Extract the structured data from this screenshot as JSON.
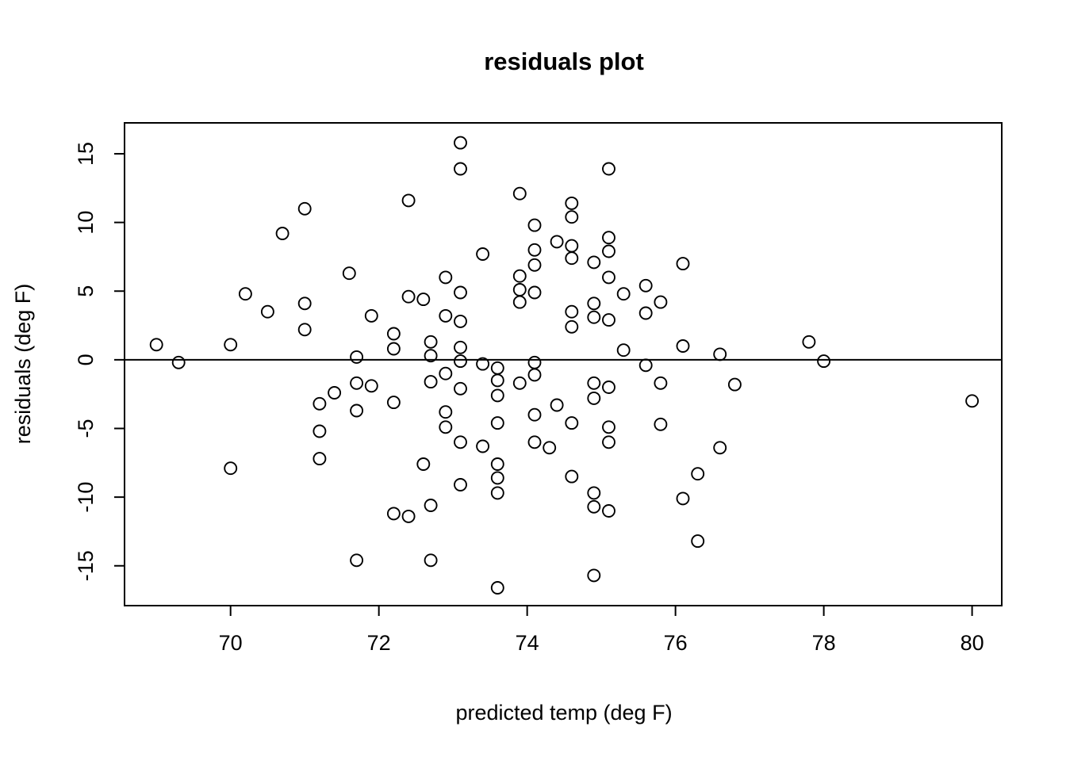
{
  "figure": {
    "background": "#ffffff",
    "foreground": "#000000"
  },
  "chart_data": {
    "type": "scatter",
    "title": "residuals plot",
    "xlabel": "predicted temp (deg F)",
    "ylabel": "residuals (deg F)",
    "marker": "open-circle",
    "grid": false,
    "legend": false,
    "zero_line_y": 0,
    "x_ticks": [
      70,
      72,
      74,
      76,
      78,
      80
    ],
    "y_ticks": [
      -15,
      -10,
      -5,
      0,
      5,
      10,
      15
    ],
    "xlim": [
      68.57,
      80.4
    ],
    "ylim": [
      -17.9,
      17.25
    ],
    "points": [
      [
        69.0,
        1.1
      ],
      [
        69.3,
        -0.2
      ],
      [
        70.0,
        1.1
      ],
      [
        70.0,
        -7.9
      ],
      [
        70.2,
        4.8
      ],
      [
        70.5,
        3.5
      ],
      [
        70.7,
        9.2
      ],
      [
        71.0,
        11.0
      ],
      [
        71.0,
        4.1
      ],
      [
        71.0,
        2.2
      ],
      [
        71.2,
        -3.2
      ],
      [
        71.2,
        -5.2
      ],
      [
        71.2,
        -7.2
      ],
      [
        71.4,
        -2.4
      ],
      [
        71.6,
        6.3
      ],
      [
        71.7,
        0.2
      ],
      [
        71.7,
        -1.7
      ],
      [
        71.7,
        -3.7
      ],
      [
        71.7,
        -14.6
      ],
      [
        71.9,
        3.2
      ],
      [
        71.9,
        -1.9
      ],
      [
        72.2,
        1.9
      ],
      [
        72.2,
        0.8
      ],
      [
        72.2,
        -3.1
      ],
      [
        72.2,
        -11.2
      ],
      [
        72.4,
        11.6
      ],
      [
        72.4,
        4.6
      ],
      [
        72.4,
        -11.4
      ],
      [
        72.6,
        4.4
      ],
      [
        72.6,
        -7.6
      ],
      [
        72.7,
        1.3
      ],
      [
        72.7,
        0.3
      ],
      [
        72.7,
        -1.6
      ],
      [
        72.7,
        -10.6
      ],
      [
        72.7,
        -14.6
      ],
      [
        72.9,
        6.0
      ],
      [
        72.9,
        3.2
      ],
      [
        72.9,
        -1.0
      ],
      [
        72.9,
        -3.8
      ],
      [
        72.9,
        -4.9
      ],
      [
        73.1,
        15.8
      ],
      [
        73.1,
        13.9
      ],
      [
        73.1,
        4.9
      ],
      [
        73.1,
        2.8
      ],
      [
        73.1,
        0.9
      ],
      [
        73.1,
        -0.1
      ],
      [
        73.1,
        -2.1
      ],
      [
        73.1,
        -6.0
      ],
      [
        73.1,
        -9.1
      ],
      [
        73.4,
        7.7
      ],
      [
        73.4,
        -0.3
      ],
      [
        73.4,
        -6.3
      ],
      [
        73.6,
        -0.6
      ],
      [
        73.6,
        -1.5
      ],
      [
        73.6,
        -2.6
      ],
      [
        73.6,
        -4.6
      ],
      [
        73.6,
        -7.6
      ],
      [
        73.6,
        -8.6
      ],
      [
        73.6,
        -9.7
      ],
      [
        73.6,
        -16.6
      ],
      [
        73.9,
        12.1
      ],
      [
        73.9,
        6.1
      ],
      [
        73.9,
        5.1
      ],
      [
        73.9,
        4.2
      ],
      [
        73.9,
        -1.7
      ],
      [
        74.1,
        9.8
      ],
      [
        74.1,
        8.0
      ],
      [
        74.1,
        6.9
      ],
      [
        74.1,
        4.9
      ],
      [
        74.1,
        -0.2
      ],
      [
        74.1,
        -1.1
      ],
      [
        74.1,
        -4.0
      ],
      [
        74.1,
        -6.0
      ],
      [
        74.3,
        -6.4
      ],
      [
        74.4,
        8.6
      ],
      [
        74.4,
        -3.3
      ],
      [
        74.6,
        11.4
      ],
      [
        74.6,
        10.4
      ],
      [
        74.6,
        8.3
      ],
      [
        74.6,
        7.4
      ],
      [
        74.6,
        3.5
      ],
      [
        74.6,
        2.4
      ],
      [
        74.6,
        -4.6
      ],
      [
        74.6,
        -8.5
      ],
      [
        74.9,
        7.1
      ],
      [
        74.9,
        4.1
      ],
      [
        74.9,
        3.1
      ],
      [
        74.9,
        -1.7
      ],
      [
        74.9,
        -2.8
      ],
      [
        74.9,
        -9.7
      ],
      [
        74.9,
        -10.7
      ],
      [
        74.9,
        -15.7
      ],
      [
        75.1,
        13.9
      ],
      [
        75.1,
        8.9
      ],
      [
        75.1,
        7.9
      ],
      [
        75.1,
        6.0
      ],
      [
        75.1,
        2.9
      ],
      [
        75.1,
        -2.0
      ],
      [
        75.1,
        -4.9
      ],
      [
        75.1,
        -6.0
      ],
      [
        75.1,
        -11.0
      ],
      [
        75.3,
        4.8
      ],
      [
        75.3,
        0.7
      ],
      [
        75.6,
        5.4
      ],
      [
        75.6,
        3.4
      ],
      [
        75.6,
        -0.4
      ],
      [
        75.8,
        4.2
      ],
      [
        75.8,
        -1.7
      ],
      [
        75.8,
        -4.7
      ],
      [
        76.1,
        7.0
      ],
      [
        76.1,
        1.0
      ],
      [
        76.1,
        -10.1
      ],
      [
        76.3,
        -8.3
      ],
      [
        76.3,
        -13.2
      ],
      [
        76.6,
        0.4
      ],
      [
        76.6,
        -6.4
      ],
      [
        76.8,
        -1.8
      ],
      [
        77.8,
        1.3
      ],
      [
        78.0,
        -0.1
      ],
      [
        80.0,
        -3.0
      ]
    ]
  }
}
